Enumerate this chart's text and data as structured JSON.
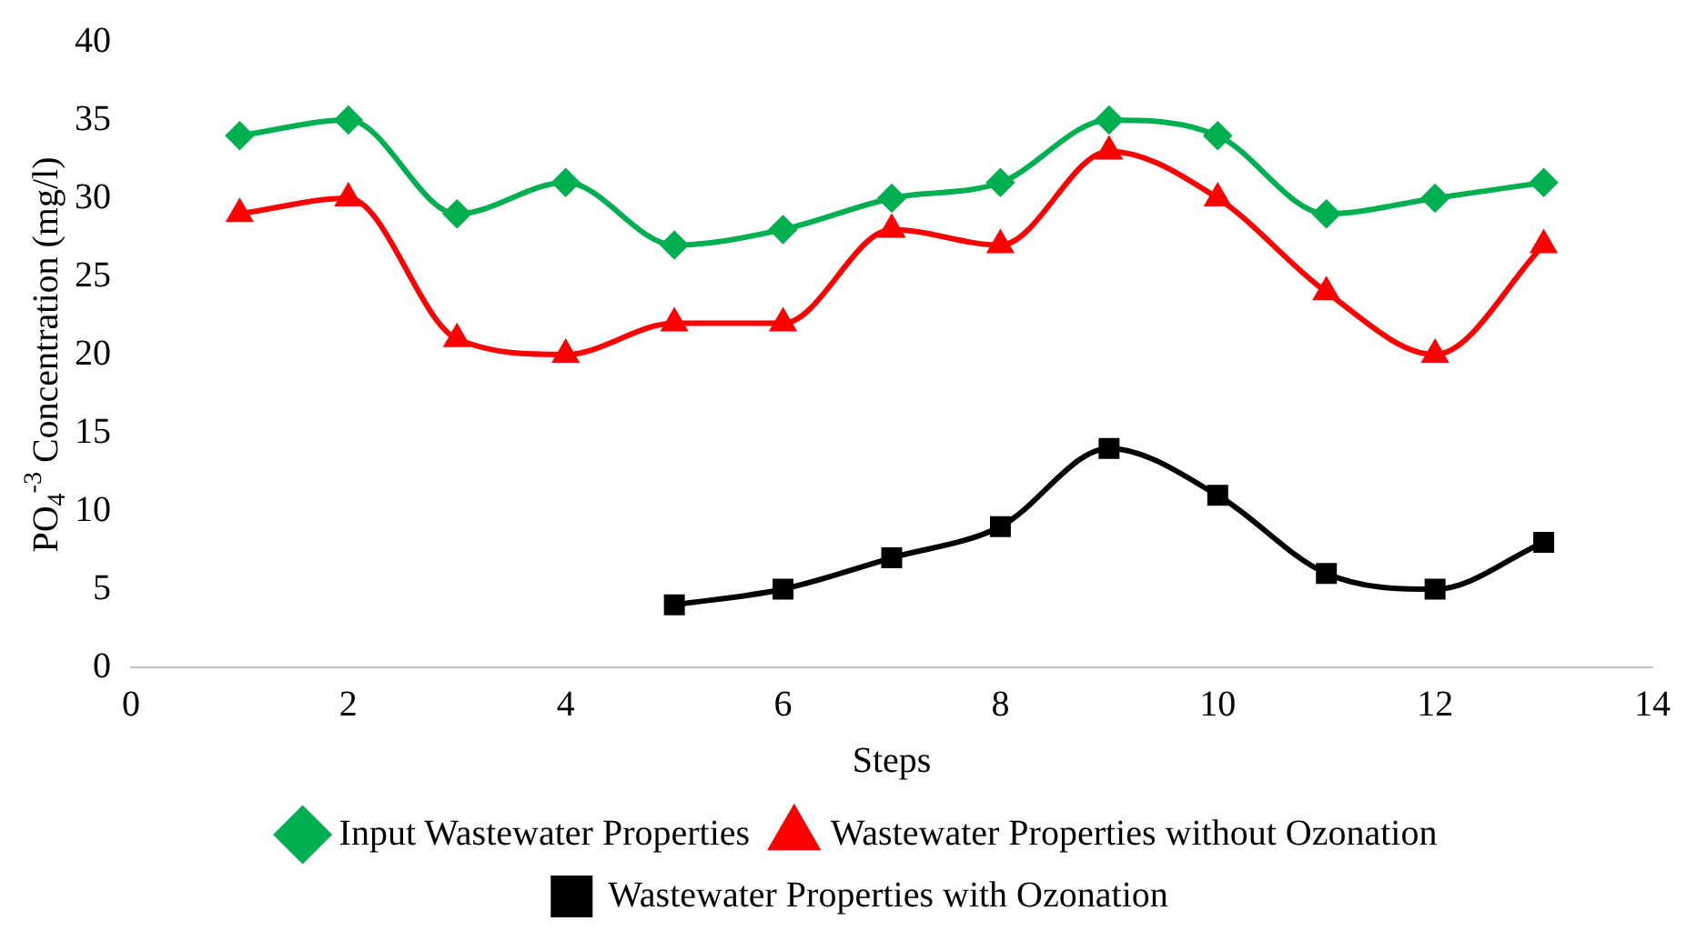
{
  "chart_data": {
    "type": "line",
    "xlabel": "Steps",
    "ylabel": "PO$_{4}$$^{-3}$ Concentration (mg/l)",
    "x": [
      1,
      2,
      3,
      4,
      5,
      6,
      7,
      8,
      9,
      10,
      11,
      12,
      13
    ],
    "series": [
      {
        "name": "Input Wastewater Properties",
        "color": "#00b050",
        "marker": "diamond",
        "values": [
          34,
          35,
          29,
          31,
          27,
          28,
          30,
          31,
          35,
          34,
          29,
          30,
          31
        ]
      },
      {
        "name": "Wastewater Properties without Ozonation",
        "color": "#ff0000",
        "marker": "triangle",
        "values": [
          29,
          30,
          21,
          20,
          22,
          22,
          28,
          27,
          33,
          30,
          24,
          20,
          27
        ]
      },
      {
        "name": "Wastewater Properties with Ozonation",
        "color": "#000000",
        "marker": "square",
        "x": [
          5,
          6,
          7,
          8,
          9,
          10,
          11,
          12,
          13
        ],
        "values": [
          4,
          5,
          7,
          9,
          14,
          11,
          6,
          5,
          8
        ]
      }
    ],
    "xlim": [
      0,
      14
    ],
    "xticks": [
      0,
      2,
      4,
      6,
      8,
      10,
      12,
      14
    ],
    "ylim": [
      0,
      40
    ],
    "yticks": [
      0,
      5,
      10,
      15,
      20,
      25,
      30,
      35,
      40
    ],
    "grid": false,
    "legend": "bottom"
  }
}
